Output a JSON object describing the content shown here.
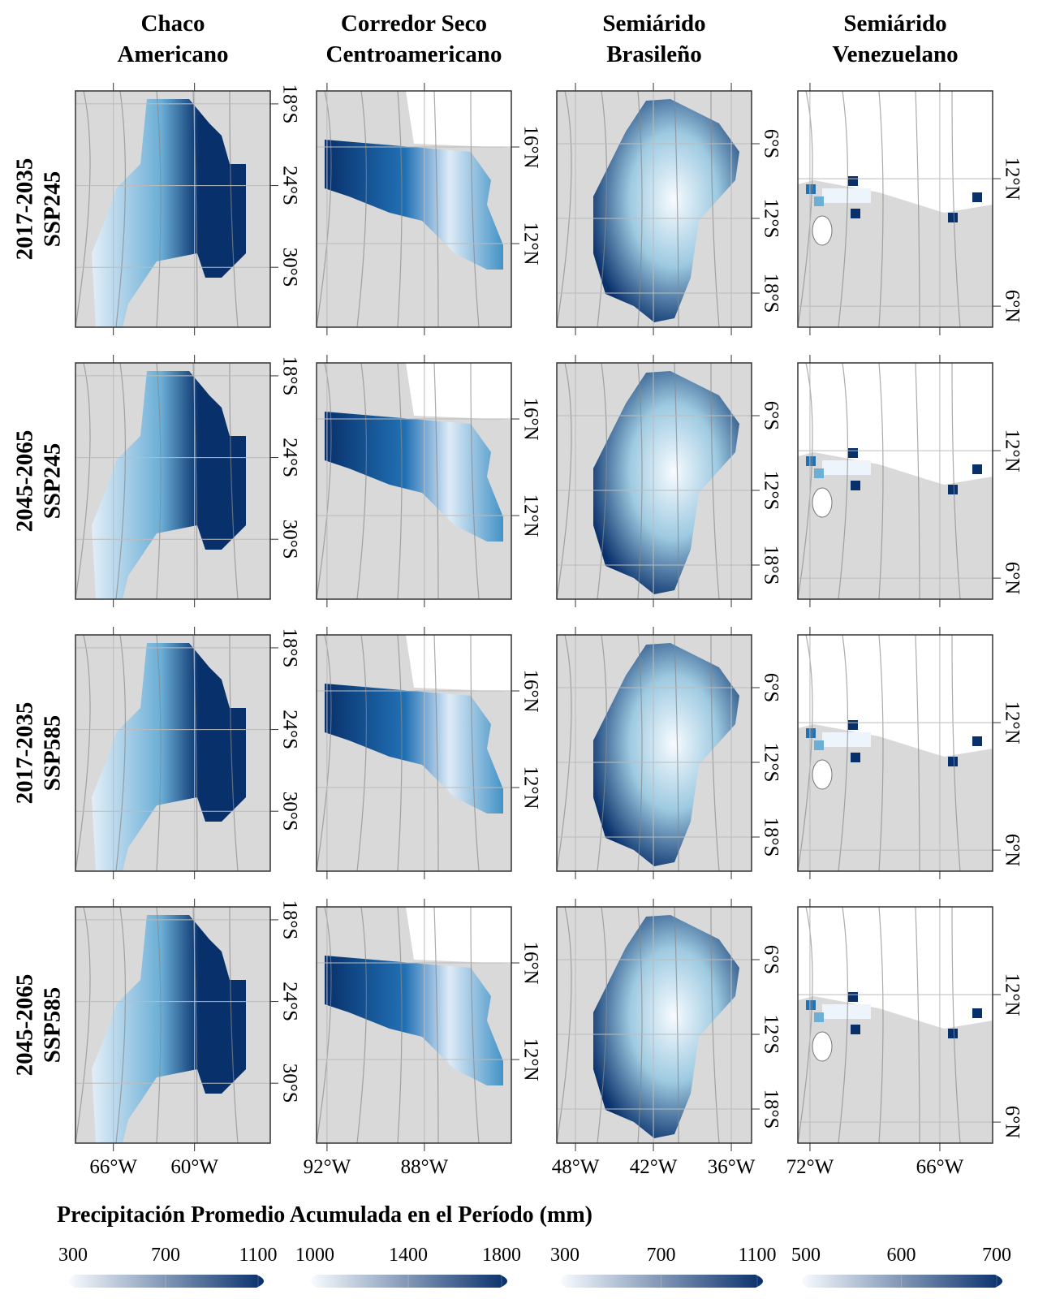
{
  "columns": [
    {
      "title": [
        "Chaco",
        "Americano"
      ],
      "xlim": [
        -68.8,
        -54.4
      ],
      "ylim": [
        -34.4,
        -17.05
      ],
      "xticks": [
        {
          "value": -66,
          "label": "66°W"
        },
        {
          "value": -60,
          "label": "60°W"
        }
      ],
      "yticks": [
        {
          "value": -18,
          "label": "18°S"
        },
        {
          "value": -24,
          "label": "24°S"
        },
        {
          "value": -30,
          "label": "30°S"
        }
      ]
    },
    {
      "title": [
        "Corredor Seco",
        "Centroamericano"
      ],
      "xlim": [
        -92.43,
        -84.43
      ],
      "ylim": [
        8.54,
        18.32
      ],
      "xticks": [
        {
          "value": -92,
          "label": "92°W"
        },
        {
          "value": -88,
          "label": "88°W"
        }
      ],
      "yticks": [
        {
          "value": 16,
          "label": "16°N"
        },
        {
          "value": 12,
          "label": "12°N"
        }
      ]
    },
    {
      "title": [
        "Semiárido",
        "Brasileño"
      ],
      "xlim": [
        -49.44,
        -34.44
      ],
      "ylim": [
        -20.74,
        -1.76
      ],
      "xticks": [
        {
          "value": -48,
          "label": "48°W"
        },
        {
          "value": -42,
          "label": "42°W"
        },
        {
          "value": -36,
          "label": "36°W"
        }
      ],
      "yticks": [
        {
          "value": -6,
          "label": "6°S"
        },
        {
          "value": -12,
          "label": "12°S"
        },
        {
          "value": -18,
          "label": "18°S"
        }
      ]
    },
    {
      "title": [
        "Semiárido",
        "Venezuelano"
      ],
      "xlim": [
        -72.56,
        -63.56
      ],
      "ylim": [
        5.01,
        16.13
      ],
      "xticks": [
        {
          "value": -72,
          "label": "72°W"
        },
        {
          "value": -66,
          "label": "66°W"
        }
      ],
      "yticks": [
        {
          "value": 12,
          "label": "12°N"
        },
        {
          "value": 6,
          "label": "6°N"
        }
      ]
    }
  ],
  "rows": [
    [
      "2017-2035",
      "SSP245"
    ],
    [
      "2045-2065",
      "SSP245"
    ],
    [
      "2017-2035",
      "SSP585"
    ],
    [
      "2045-2065",
      "SSP585"
    ]
  ],
  "legend": {
    "title": "Precipitación Promedio Acumulada en el Período (mm)",
    "colors": [
      "#f7fbff",
      "#08306b"
    ],
    "scales": [
      {
        "lim": [
          300,
          1100
        ],
        "ticks": [
          300,
          700,
          1100
        ]
      },
      {
        "lim": [
          1000,
          1800
        ],
        "ticks": [
          1000,
          1400,
          1800
        ]
      },
      {
        "lim": [
          300,
          1100
        ],
        "ticks": [
          300,
          700,
          1100
        ]
      },
      {
        "lim": [
          500,
          700
        ],
        "ticks": [
          500,
          600,
          700
        ]
      }
    ]
  }
}
